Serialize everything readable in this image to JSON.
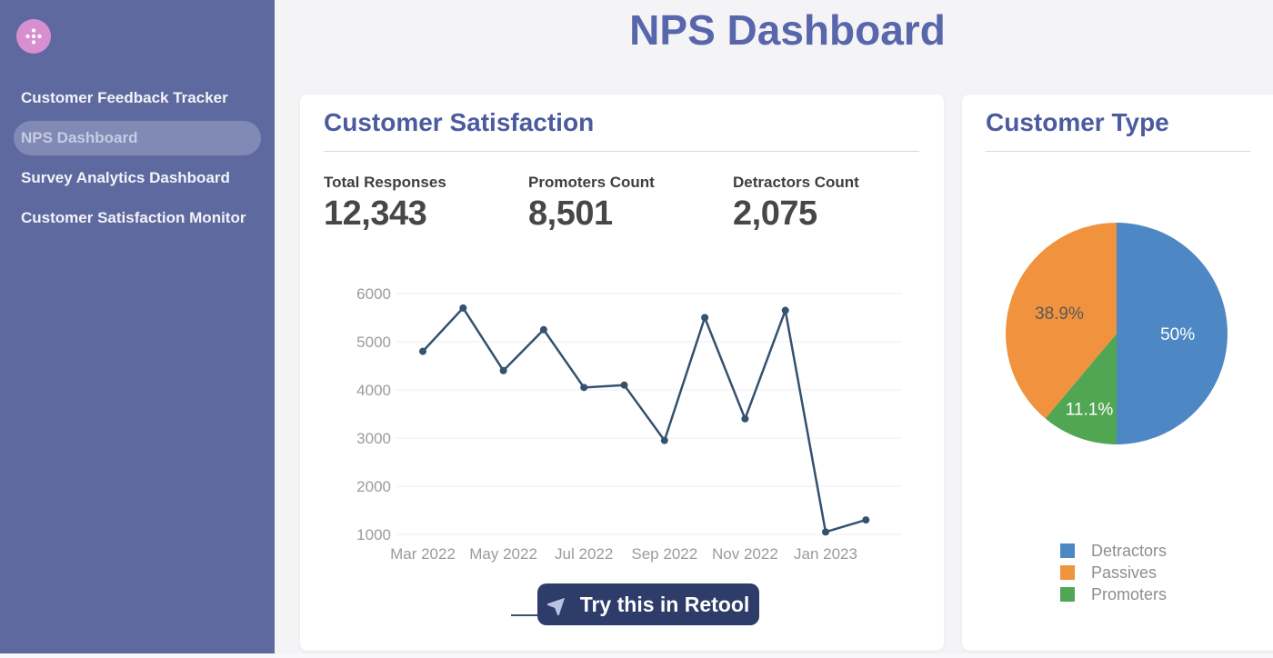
{
  "sidebar": {
    "items": [
      {
        "label": "Customer Feedback Tracker",
        "active": false
      },
      {
        "label": "NPS Dashboard",
        "active": true
      },
      {
        "label": "Survey Analytics Dashboard",
        "active": false
      },
      {
        "label": "Customer Satisfaction Monitor",
        "active": false
      }
    ]
  },
  "header": {
    "title": "NPS Dashboard"
  },
  "satisfaction_card": {
    "title": "Customer Satisfaction",
    "stats": [
      {
        "label": "Total Responses",
        "value": "12,343"
      },
      {
        "label": "Promoters Count",
        "value": "8,501"
      },
      {
        "label": "Detractors Count",
        "value": "2,075"
      }
    ]
  },
  "type_card": {
    "title": "Customer Type"
  },
  "retool_button": {
    "label": "Try this in Retool",
    "icon": "cursor-arrow-icon"
  },
  "colors": {
    "sidebar_bg": "#5e69a0",
    "logo_pink": "#d88fd0",
    "heading_blue": "#5866ab",
    "card_title_blue": "#4c5b9e",
    "line_color": "#34516F",
    "grid_color": "#ececef",
    "axis_label_gray": "#9b9b9b",
    "button_bg": "#2e3c69",
    "button_icon": "#b9c2e2"
  },
  "chart_data": [
    {
      "type": "line",
      "title": "Customer Satisfaction over time",
      "x": [
        "Mar 2022",
        "Apr 2022",
        "May 2022",
        "Jun 2022",
        "Jul 2022",
        "Aug 2022",
        "Sep 2022",
        "Oct 2022",
        "Nov 2022",
        "Dec 2022",
        "Jan 2023",
        "Feb 2023"
      ],
      "values": [
        4800,
        5700,
        4400,
        5250,
        4050,
        4100,
        2950,
        5500,
        3400,
        5650,
        1050,
        1300
      ],
      "x_tick_labels": [
        "Mar 2022",
        "May 2022",
        "Jul 2022",
        "Sep 2022",
        "Nov 2022",
        "Jan 2023"
      ],
      "y_ticks": [
        1000,
        2000,
        3000,
        4000,
        5000,
        6000
      ],
      "ylim": [
        1000,
        6000
      ],
      "xlabel": "",
      "ylabel": "",
      "grid": true,
      "legend_position": "none",
      "line_color": "#34516F"
    },
    {
      "type": "pie",
      "title": "Customer Type",
      "slices": [
        {
          "label": "Detractors",
          "value": 50,
          "display": "50%",
          "color": "#4D87C4",
          "label_color": "#ffffff"
        },
        {
          "label": "Promoters",
          "value": 11.1,
          "display": "11.1%",
          "color": "#51A653",
          "label_color": "#ffffff"
        },
        {
          "label": "Passives",
          "value": 38.9,
          "display": "38.9%",
          "color": "#F0923E",
          "label_color": "#58595B"
        }
      ],
      "legend": [
        {
          "label": "Detractors",
          "color": "#4D87C4"
        },
        {
          "label": "Passives",
          "color": "#F0923E"
        },
        {
          "label": "Promoters",
          "color": "#51A653"
        }
      ],
      "legend_position": "bottom"
    }
  ]
}
